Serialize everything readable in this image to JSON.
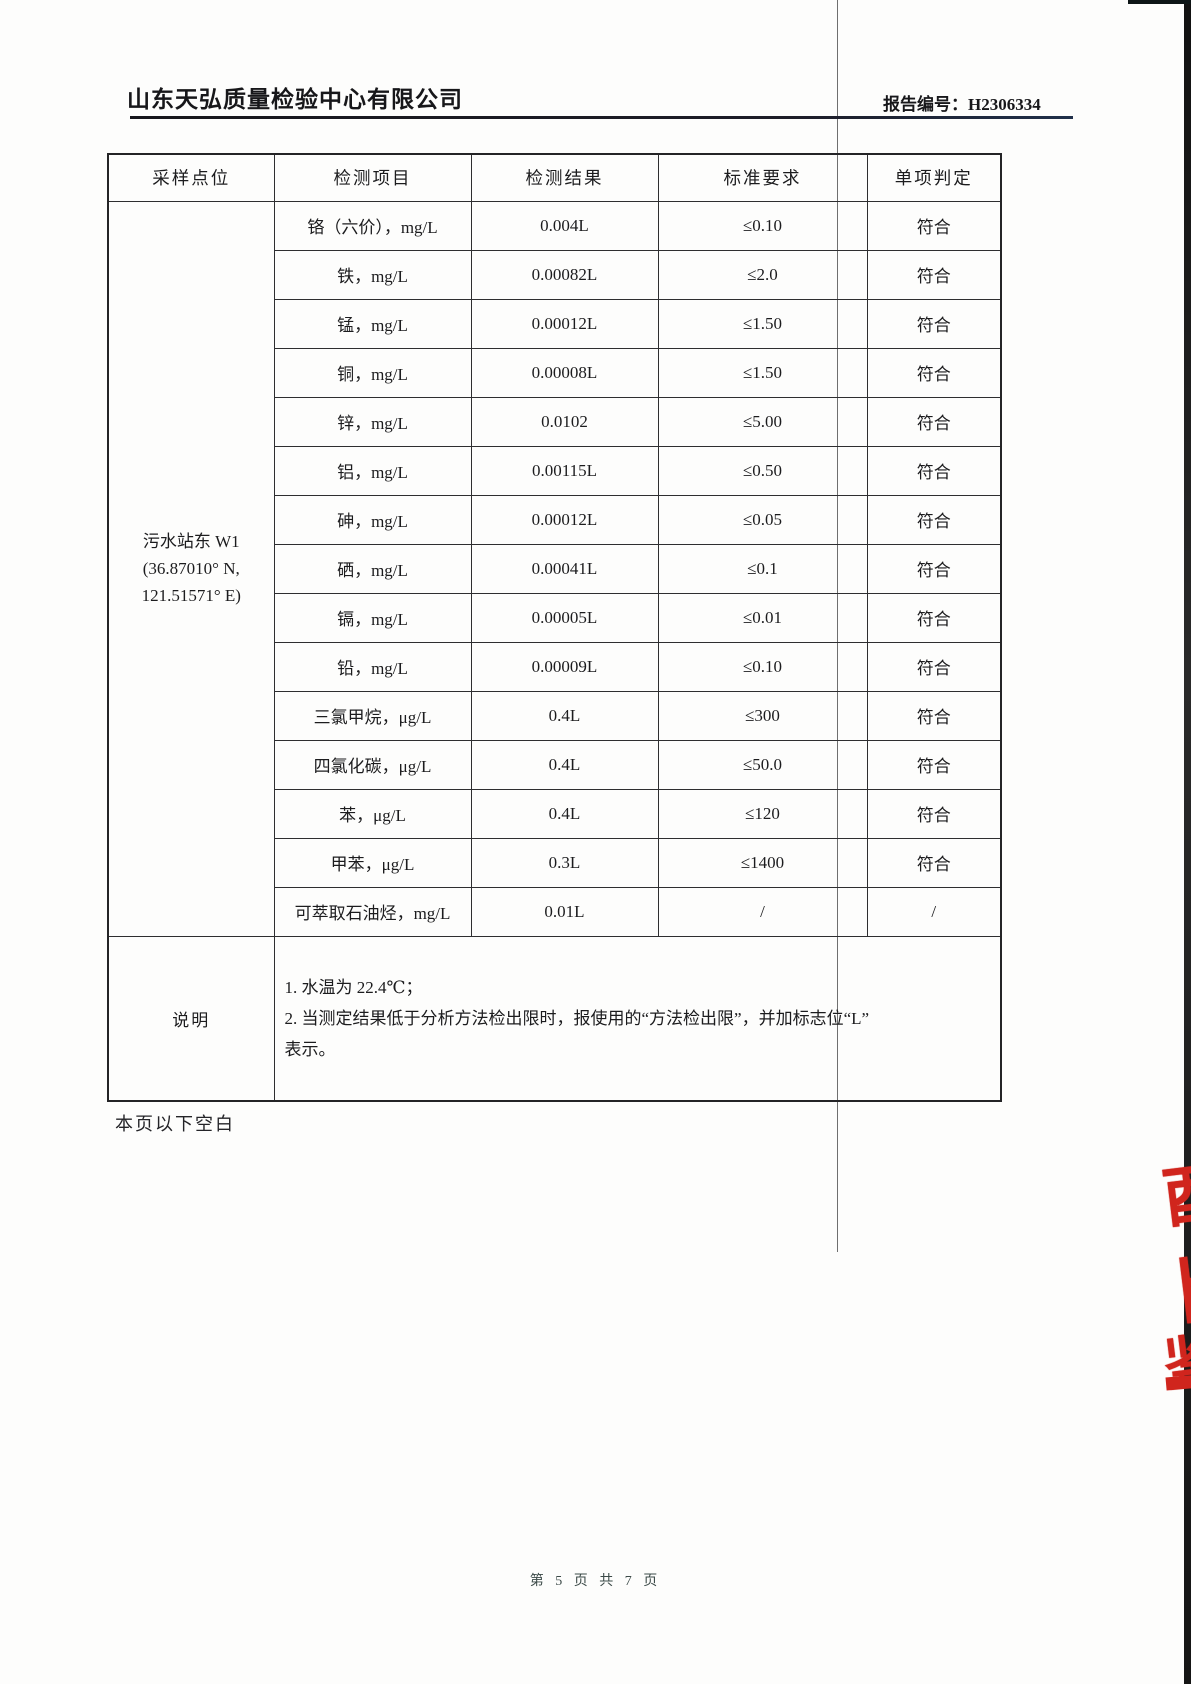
{
  "header": {
    "company": "山东天弘质量检验中心有限公司",
    "report_no_label": "报告编号：",
    "report_no": "H2306334"
  },
  "table": {
    "columns": [
      "采样点位",
      "检测项目",
      "检测结果",
      "标准要求",
      "单项判定"
    ],
    "sampling_point": {
      "line1": "污水站东 W1",
      "line2": "(36.87010° N,",
      "line3": "121.51571° E)"
    },
    "rows": [
      {
        "item": "铬（六价），mg/L",
        "result": "0.004L",
        "standard": "≤0.10",
        "judgment": "符合"
      },
      {
        "item": "铁，mg/L",
        "result": "0.00082L",
        "standard": "≤2.0",
        "judgment": "符合"
      },
      {
        "item": "锰，mg/L",
        "result": "0.00012L",
        "standard": "≤1.50",
        "judgment": "符合"
      },
      {
        "item": "铜，mg/L",
        "result": "0.00008L",
        "standard": "≤1.50",
        "judgment": "符合"
      },
      {
        "item": "锌，mg/L",
        "result": "0.0102",
        "standard": "≤5.00",
        "judgment": "符合"
      },
      {
        "item": "铝，mg/L",
        "result": "0.00115L",
        "standard": "≤0.50",
        "judgment": "符合"
      },
      {
        "item": "砷，mg/L",
        "result": "0.00012L",
        "standard": "≤0.05",
        "judgment": "符合"
      },
      {
        "item": "硒，mg/L",
        "result": "0.00041L",
        "standard": "≤0.1",
        "judgment": "符合"
      },
      {
        "item": "镉，mg/L",
        "result": "0.00005L",
        "standard": "≤0.01",
        "judgment": "符合"
      },
      {
        "item": "铅，mg/L",
        "result": "0.00009L",
        "standard": "≤0.10",
        "judgment": "符合"
      },
      {
        "item": "三氯甲烷，μg/L",
        "result": "0.4L",
        "standard": "≤300",
        "judgment": "符合"
      },
      {
        "item": "四氯化碳，μg/L",
        "result": "0.4L",
        "standard": "≤50.0",
        "judgment": "符合"
      },
      {
        "item": "苯，μg/L",
        "result": "0.4L",
        "standard": "≤120",
        "judgment": "符合"
      },
      {
        "item": "甲苯，μg/L",
        "result": "0.3L",
        "standard": "≤1400",
        "judgment": "符合"
      },
      {
        "item": "可萃取石油烃，mg/L",
        "result": "0.01L",
        "standard": "/",
        "judgment": "/"
      }
    ],
    "notes": {
      "label": "说明",
      "lines": [
        "1. 水温为 22.4℃；",
        "2. 当测定结果低于分析方法检出限时，报使用的“方法检出限”，并加标志位“L”",
        "表示。"
      ]
    }
  },
  "body_text": {
    "blank_below": "本页以下空白"
  },
  "footer": {
    "page_info": "第 5 页 共 7 页"
  },
  "stamp": {
    "color": "#d0251d",
    "frag_a": "酉",
    "frag_b": "卜",
    "frag_c": "鉴"
  }
}
